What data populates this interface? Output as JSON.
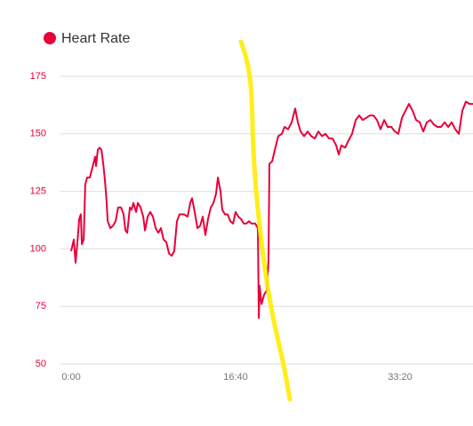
{
  "chart_data": {
    "type": "line",
    "x": [
      0,
      16,
      27,
      38,
      49,
      59,
      65,
      76,
      86,
      97,
      114,
      124,
      135,
      146,
      151,
      162,
      173,
      184,
      195,
      205,
      216,
      222,
      238,
      254,
      270,
      286,
      303,
      319,
      330,
      341,
      357,
      368,
      378,
      395,
      405,
      422,
      438,
      449,
      465,
      481,
      497,
      514,
      530,
      546,
      562,
      578,
      595,
      611,
      627,
      643,
      659,
      686,
      708,
      724,
      735,
      751,
      768,
      784,
      800,
      816,
      832,
      849,
      865,
      881,
      892,
      908,
      919,
      935,
      951,
      968,
      984,
      1000,
      1016,
      1032,
      1049,
      1065,
      1081,
      1097,
      1119,
      1135,
      1141,
      1146,
      1157,
      1173,
      1189,
      1200,
      1205,
      1222,
      1238,
      1259,
      1281,
      1297,
      1319,
      1341,
      1362,
      1378,
      1395,
      1416,
      1438,
      1459,
      1481,
      1503,
      1524,
      1546,
      1568,
      1589,
      1611,
      1627,
      1643,
      1665,
      1686,
      1708,
      1730,
      1751,
      1773,
      1795,
      1816,
      1838,
      1859,
      1881,
      1903,
      1924,
      1946,
      1968,
      1989,
      2011,
      2032,
      2054,
      2076,
      2097,
      2119,
      2141,
      2162,
      2184,
      2205,
      2227,
      2249,
      2270,
      2292,
      2314,
      2335,
      2357,
      2378,
      2400,
      2422,
      2443
    ],
    "series": [
      {
        "name": "Heart Rate",
        "color": "#e8003a",
        "values": [
          99,
          104,
          94,
          103,
          113,
          115,
          102,
          104,
          128,
          131,
          131,
          134,
          137,
          140,
          136,
          143,
          144,
          143,
          137,
          130,
          120,
          112,
          109,
          110,
          112,
          118,
          118,
          115,
          108,
          107,
          118,
          117,
          120,
          116,
          120,
          118,
          114,
          108,
          114,
          116,
          114,
          109,
          107,
          109,
          104,
          103,
          98,
          97,
          99,
          112,
          115,
          115,
          114,
          120,
          122,
          116,
          109,
          110,
          114,
          106,
          113,
          118,
          120,
          124,
          131,
          125,
          117,
          115,
          115,
          112,
          111,
          116,
          114,
          113,
          111,
          111,
          112,
          111,
          111,
          109,
          70,
          84,
          76,
          80,
          82,
          95,
          137,
          138,
          143,
          149,
          150,
          153,
          152,
          155,
          161,
          155,
          151,
          149,
          151,
          149,
          148,
          151,
          149,
          150,
          148,
          148,
          145,
          141,
          145,
          144,
          147,
          150,
          156,
          158,
          156,
          157,
          158,
          158,
          156,
          152,
          156,
          153,
          153,
          151,
          150,
          157,
          160,
          163,
          160,
          156,
          155,
          151,
          155,
          156,
          154,
          153,
          153,
          155,
          153,
          155,
          152,
          150,
          160,
          164,
          163,
          163
        ]
      }
    ],
    "xlim": [
      -65,
      2443
    ],
    "xticks": [
      {
        "value": 0,
        "label": "0:00"
      },
      {
        "value": 1000,
        "label": "16:40"
      },
      {
        "value": 2000,
        "label": "33:20"
      }
    ],
    "ylim": [
      50,
      175
    ],
    "yticks": [
      50,
      75,
      100,
      125,
      150,
      175
    ],
    "grid": true
  }
}
